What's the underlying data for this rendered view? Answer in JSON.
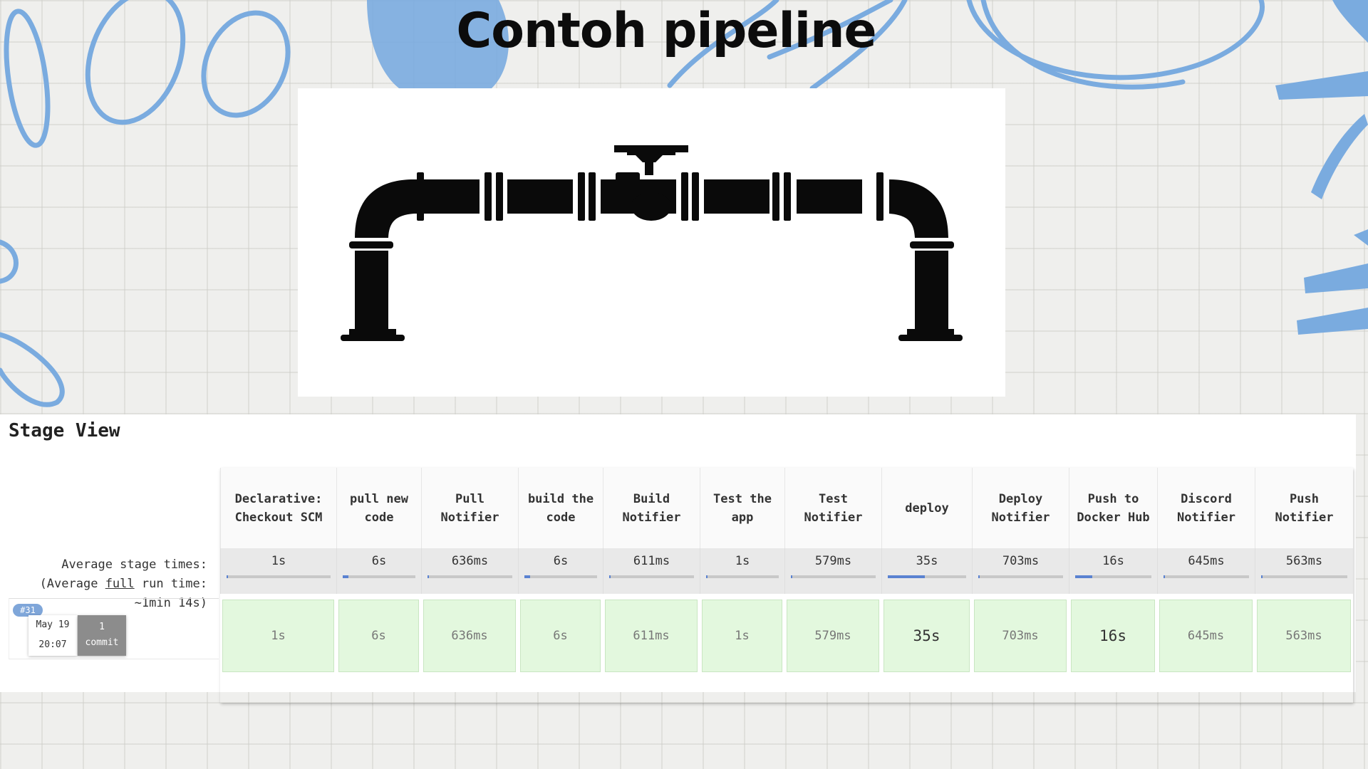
{
  "slide": {
    "title": "Contoh pipeline"
  },
  "stage_view": {
    "title": "Stage View",
    "avg_label_line1": "Average stage times:",
    "avg_label_prefix": "(Average ",
    "avg_label_link": "full",
    "avg_label_suffix": " run time:",
    "avg_label_line3": "~1min 14s)",
    "run": {
      "badge": "#31",
      "date": "May 19",
      "time": "20:07",
      "commit_count": "1",
      "commit_label": "commit"
    },
    "stages": [
      {
        "name": "Declarative: Checkout SCM",
        "avg": "1s",
        "time": "1s",
        "bar_fill": 0.01,
        "emphasis": false
      },
      {
        "name": "pull new code",
        "avg": "6s",
        "time": "6s",
        "bar_fill": 0.08,
        "emphasis": false
      },
      {
        "name": "Pull Notifier",
        "avg": "636ms",
        "time": "636ms",
        "bar_fill": 0.01,
        "emphasis": false
      },
      {
        "name": "build the code",
        "avg": "6s",
        "time": "6s",
        "bar_fill": 0.08,
        "emphasis": false
      },
      {
        "name": "Build Notifier",
        "avg": "611ms",
        "time": "611ms",
        "bar_fill": 0.01,
        "emphasis": false
      },
      {
        "name": "Test the app",
        "avg": "1s",
        "time": "1s",
        "bar_fill": 0.01,
        "emphasis": false
      },
      {
        "name": "Test Notifier",
        "avg": "579ms",
        "time": "579ms",
        "bar_fill": 0.01,
        "emphasis": false
      },
      {
        "name": "deploy",
        "avg": "35s",
        "time": "35s",
        "bar_fill": 0.47,
        "emphasis": true
      },
      {
        "name": "Deploy Notifier",
        "avg": "703ms",
        "time": "703ms",
        "bar_fill": 0.01,
        "emphasis": false
      },
      {
        "name": "Push to Docker Hub",
        "avg": "16s",
        "time": "16s",
        "bar_fill": 0.22,
        "emphasis": true
      },
      {
        "name": "Discord Notifier",
        "avg": "645ms",
        "time": "645ms",
        "bar_fill": 0.01,
        "emphasis": false
      },
      {
        "name": "Push Notifier",
        "avg": "563ms",
        "time": "563ms",
        "bar_fill": 0.01,
        "emphasis": false
      }
    ]
  }
}
